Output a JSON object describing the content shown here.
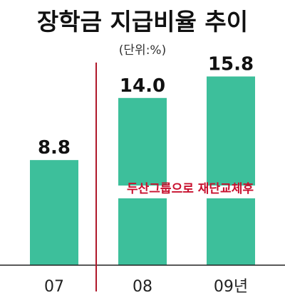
{
  "chart_data": {
    "type": "bar",
    "title": "장학금 지급비율 추이",
    "subtitle": "(단위:%)",
    "categories": [
      "07",
      "08",
      "09년"
    ],
    "values": [
      8.8,
      14.0,
      15.8
    ],
    "value_labels": [
      "8.8",
      "14.0",
      "15.8"
    ],
    "xlabel": "",
    "ylabel": "",
    "ylim": [
      0,
      17
    ],
    "grid": false,
    "legend": "none",
    "annotation": "두산그룹으로 재단교체후",
    "colors": {
      "bar": "#3dbf9b",
      "divider": "#b0182a",
      "annotation": "#c8102e",
      "axis": "#222222"
    }
  }
}
